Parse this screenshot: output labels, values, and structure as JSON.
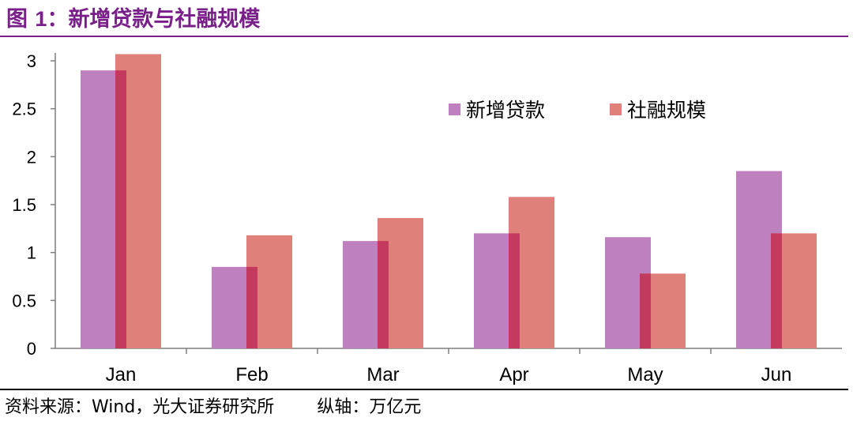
{
  "figure": {
    "label": "图",
    "number": "1",
    "separator": "：",
    "title_text": "新增贷款与社融规模"
  },
  "source": {
    "prefix": "资料来源：",
    "text": "Wind，光大证券研究所",
    "unit_note": "纵轴：万亿元"
  },
  "colors": {
    "title": "#7a1f8a",
    "series_1": "#bf80bf",
    "series_2": "#e0807a",
    "overlap": "#c43a5e"
  },
  "chart_data": {
    "type": "bar",
    "categories": [
      "Jan",
      "Feb",
      "Mar",
      "Apr",
      "May",
      "Jun"
    ],
    "series": [
      {
        "name": "新增贷款",
        "values": [
          2.9,
          0.85,
          1.12,
          1.2,
          1.16,
          1.85
        ]
      },
      {
        "name": "社融规模",
        "values": [
          3.07,
          1.18,
          1.36,
          1.58,
          0.78,
          1.2
        ]
      }
    ],
    "ylim": [
      0,
      3
    ],
    "yticks": [
      "0",
      "0.5",
      "1",
      "1.5",
      "2",
      "2.5",
      "3"
    ],
    "legend_position": "top-right",
    "grid": false
  }
}
